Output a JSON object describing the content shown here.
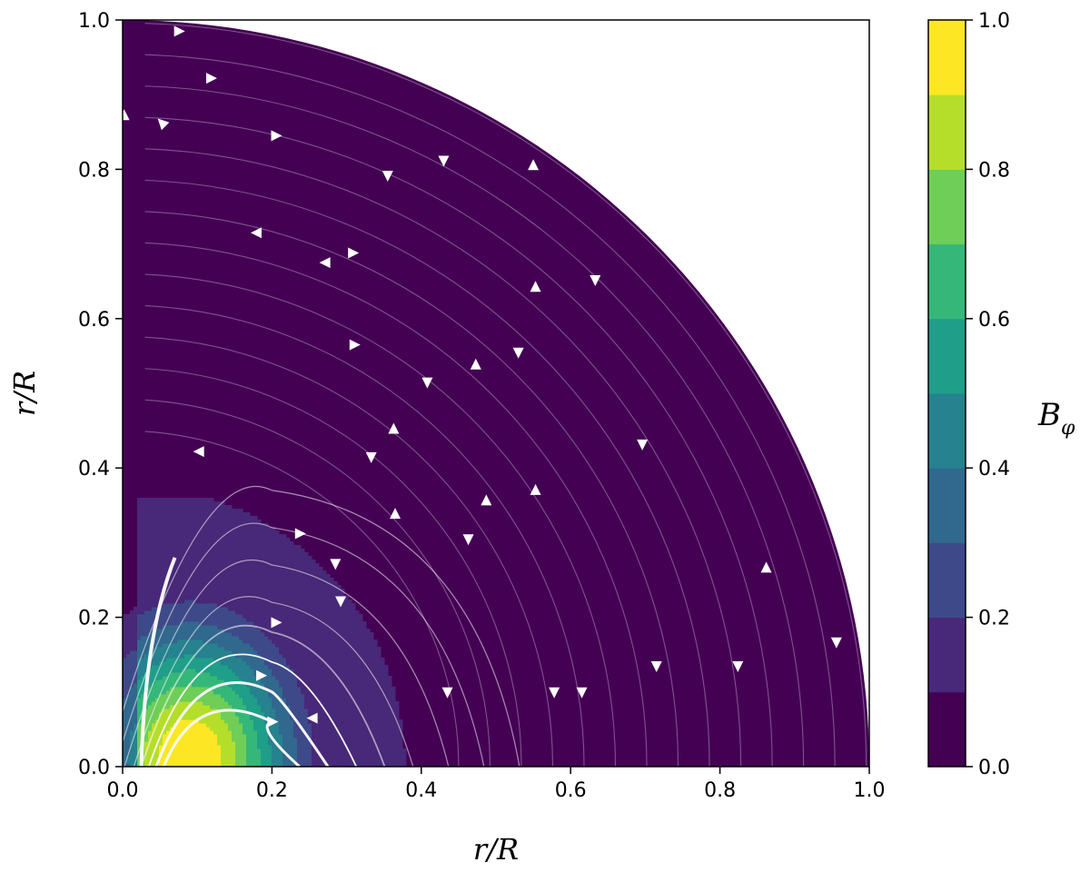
{
  "chart_data": {
    "type": "heatmap",
    "description_of_content": "",
    "title": "",
    "xlabel": "r/R",
    "ylabel": "r/R",
    "xlim": [
      0.0,
      1.0
    ],
    "ylim": [
      0.0,
      1.0
    ],
    "x_ticks": [
      "0.0",
      "0.2",
      "0.4",
      "0.6",
      "0.8",
      "1.0"
    ],
    "y_ticks": [
      "0.0",
      "0.2",
      "0.4",
      "0.6",
      "0.8",
      "1.0"
    ],
    "grid": false,
    "domain": "quarter-disk, radius 1",
    "contour_field": {
      "name": "B_phi",
      "peak_location": [
        0.09,
        0.01
      ],
      "extent_radius": 0.41
    },
    "colorbar": {
      "label": "B",
      "label_sub": "φ",
      "range": [
        0.0,
        1.0
      ],
      "ticks": [
        "0.0",
        "0.2",
        "0.4",
        "0.6",
        "0.8",
        "1.0"
      ],
      "levels": [
        0.0,
        0.1,
        0.2,
        0.3,
        0.4,
        0.5,
        0.6,
        0.7,
        0.8,
        0.9,
        1.0
      ],
      "colors": [
        "#440154",
        "#482878",
        "#3e4989",
        "#31688e",
        "#26828e",
        "#1f9e89",
        "#35b779",
        "#6ece58",
        "#b5de2b",
        "#fde725"
      ]
    },
    "streamline_arrows": [
      [
        0.075,
        0.985,
        "right"
      ],
      [
        0.118,
        0.922,
        "right"
      ],
      [
        0.053,
        0.862,
        "up-left"
      ],
      [
        0.205,
        0.845,
        "right"
      ],
      [
        0.002,
        0.872,
        "up"
      ],
      [
        0.43,
        0.812,
        "down"
      ],
      [
        0.55,
        0.805,
        "up"
      ],
      [
        0.355,
        0.792,
        "down"
      ],
      [
        0.18,
        0.715,
        "left"
      ],
      [
        0.272,
        0.675,
        "left"
      ],
      [
        0.308,
        0.688,
        "right"
      ],
      [
        0.553,
        0.642,
        "up"
      ],
      [
        0.633,
        0.652,
        "down"
      ],
      [
        0.31,
        0.565,
        "right"
      ],
      [
        0.53,
        0.555,
        "down"
      ],
      [
        0.473,
        0.538,
        "up"
      ],
      [
        0.408,
        0.515,
        "down"
      ],
      [
        0.103,
        0.422,
        "left"
      ],
      [
        0.363,
        0.452,
        "up"
      ],
      [
        0.333,
        0.415,
        "down"
      ],
      [
        0.696,
        0.432,
        "down"
      ],
      [
        0.553,
        0.37,
        "up"
      ],
      [
        0.487,
        0.356,
        "up"
      ],
      [
        0.365,
        0.338,
        "up"
      ],
      [
        0.463,
        0.305,
        "down"
      ],
      [
        0.237,
        0.312,
        "right"
      ],
      [
        0.285,
        0.272,
        "down"
      ],
      [
        0.862,
        0.266,
        "up"
      ],
      [
        0.292,
        0.222,
        "down"
      ],
      [
        0.205,
        0.193,
        "right"
      ],
      [
        0.185,
        0.122,
        "right"
      ],
      [
        0.956,
        0.167,
        "down"
      ],
      [
        0.715,
        0.135,
        "down"
      ],
      [
        0.824,
        0.135,
        "down"
      ],
      [
        0.435,
        0.1,
        "down"
      ],
      [
        0.578,
        0.1,
        "down"
      ],
      [
        0.615,
        0.1,
        "down"
      ],
      [
        0.2,
        0.06,
        "right"
      ],
      [
        0.255,
        0.065,
        "left"
      ]
    ]
  }
}
